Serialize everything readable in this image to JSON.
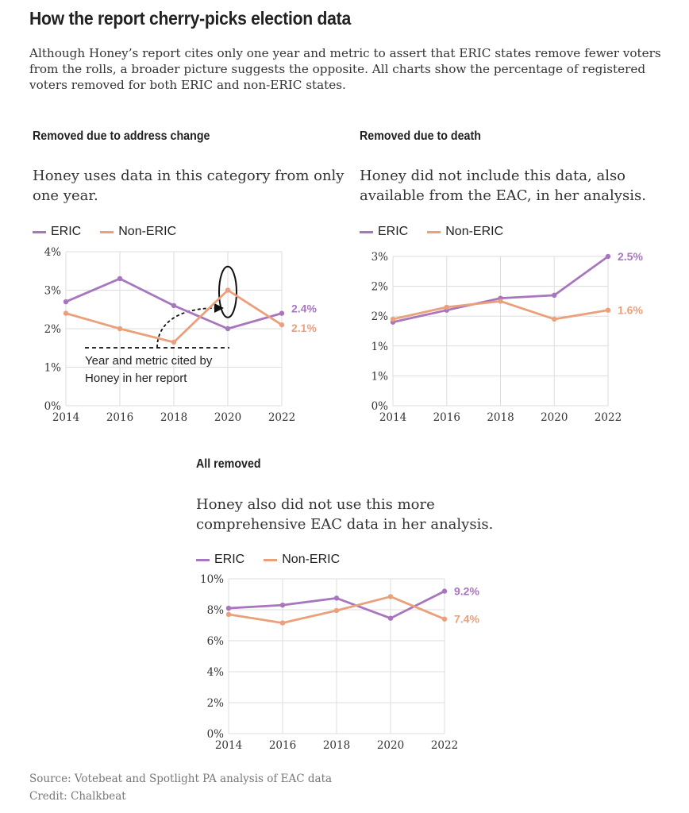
{
  "header": {
    "title": "How the report cherry-picks election data",
    "subtitle": "Although Honey’s report cites only one year and metric to assert that ERIC states remove fewer voters from the rolls, a broader picture suggests the opposite. All charts show the percentage of registered voters removed for both ERIC and non-ERIC states."
  },
  "colors": {
    "eric": "#a876bf",
    "non_eric": "#eba07c",
    "grid": "#dddddd"
  },
  "legend": {
    "eric": "ERIC",
    "non_eric": "Non-ERIC"
  },
  "footer": {
    "source": "Source: Votebeat and Spotlight PA analysis of EAC data",
    "credit": "Credit: Chalkbeat"
  },
  "chart_data": [
    {
      "id": "address",
      "type": "line",
      "title": "Removed due to address change",
      "description": "Honey uses data in this category from only one year.",
      "x": [
        2014,
        2016,
        2018,
        2020,
        2022
      ],
      "ylim": [
        0,
        4
      ],
      "y_ticks": [
        0,
        1,
        2,
        3,
        4
      ],
      "y_tick_labels": [
        "0%",
        "1%",
        "2%",
        "3%",
        "4%"
      ],
      "series": [
        {
          "name": "ERIC",
          "values": [
            2.7,
            3.3,
            2.6,
            2.0,
            2.4
          ],
          "end_label": "2.4%"
        },
        {
          "name": "Non-ERIC",
          "values": [
            2.4,
            2.0,
            1.65,
            3.0,
            2.1
          ],
          "end_label": "2.1%"
        }
      ],
      "annotation": {
        "text_lines": [
          "Year and metric cited by",
          "Honey in her report"
        ],
        "year": 2020
      }
    },
    {
      "id": "death",
      "type": "line",
      "title": "Removed due to death",
      "description": "Honey did not include this data, also available from the EAC, in her analysis.",
      "x": [
        2014,
        2016,
        2018,
        2020,
        2022
      ],
      "ylim": [
        0,
        2.5
      ],
      "y_ticks": [
        0,
        0.5,
        1,
        1.5,
        2,
        2.5
      ],
      "y_tick_labels": [
        "0%",
        "1%",
        "1%",
        "2%",
        "2%",
        "3%"
      ],
      "series": [
        {
          "name": "ERIC",
          "values": [
            1.4,
            1.6,
            1.8,
            1.85,
            2.5
          ],
          "end_label": "2.5%"
        },
        {
          "name": "Non-ERIC",
          "values": [
            1.45,
            1.65,
            1.75,
            1.45,
            1.6
          ],
          "end_label": "1.6%"
        }
      ]
    },
    {
      "id": "all",
      "type": "line",
      "title": "All removed",
      "description": "Honey also did not use this more comprehensive EAC data in her analysis.",
      "x": [
        2014,
        2016,
        2018,
        2020,
        2022
      ],
      "ylim": [
        0,
        10
      ],
      "y_ticks": [
        0,
        2,
        4,
        6,
        8,
        10
      ],
      "y_tick_labels": [
        "0%",
        "2%",
        "4%",
        "6%",
        "8%",
        "10%"
      ],
      "series": [
        {
          "name": "ERIC",
          "values": [
            8.1,
            8.3,
            8.75,
            7.45,
            9.2
          ],
          "end_label": "9.2%"
        },
        {
          "name": "Non-ERIC",
          "values": [
            7.7,
            7.15,
            7.95,
            8.85,
            7.4
          ],
          "end_label": "7.4%"
        }
      ]
    }
  ]
}
